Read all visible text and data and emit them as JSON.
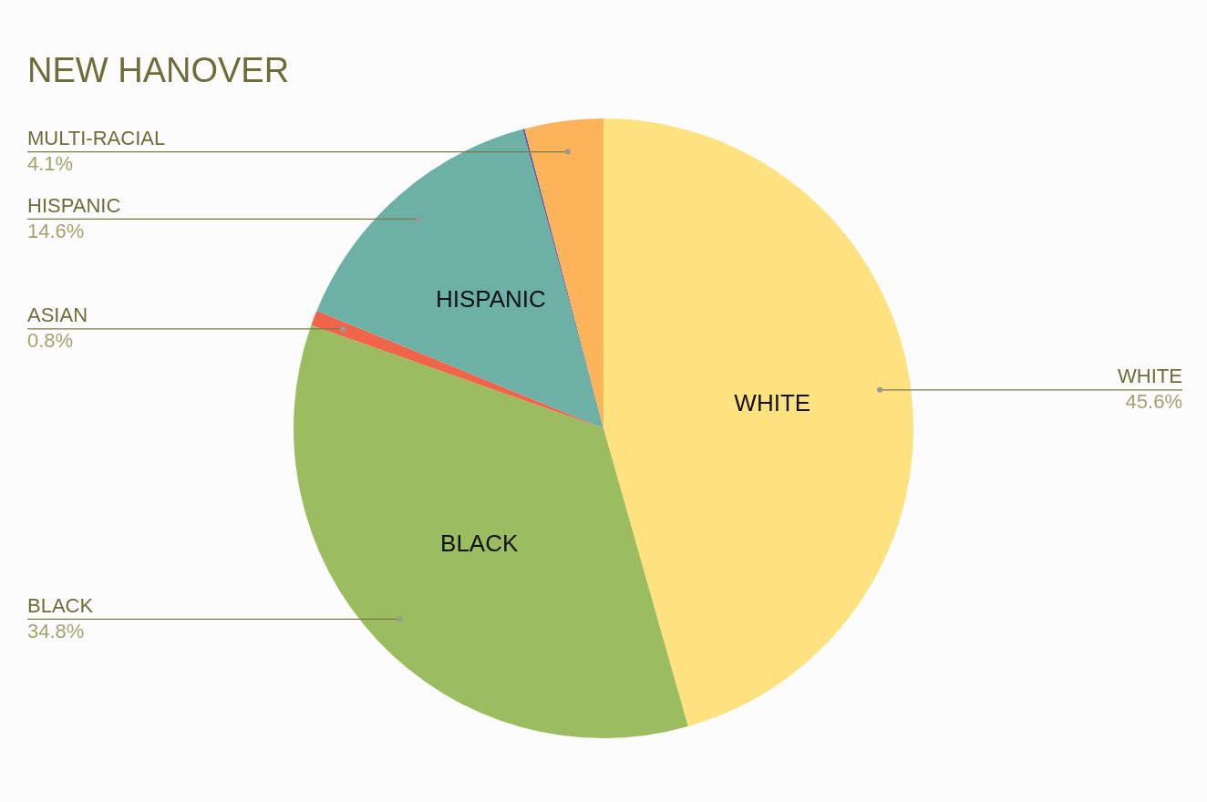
{
  "chart_data": {
    "type": "pie",
    "title": "NEW HANOVER",
    "categories": [
      "WHITE",
      "BLACK",
      "ASIAN",
      "HISPANIC",
      null,
      "MULTI-RACIAL"
    ],
    "values": [
      45.6,
      34.8,
      0.8,
      14.6,
      0.1,
      4.1
    ],
    "value_labels": [
      "45.6%",
      "34.8%",
      "0.8%",
      "14.6%",
      null,
      "4.1%"
    ],
    "colors": [
      "#fee27f",
      "#9bbd5f",
      "#f0644a",
      "#6cb0a6",
      "#5e5aa0",
      "#fdb35a"
    ],
    "legend": false
  }
}
